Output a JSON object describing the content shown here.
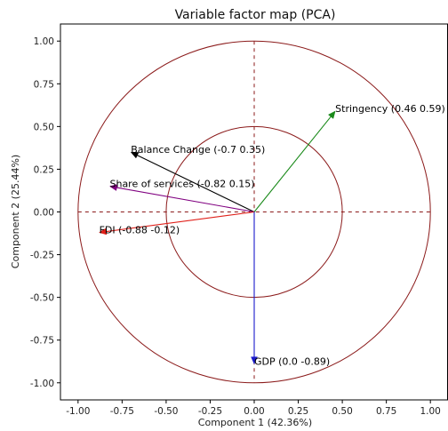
{
  "chart_data": {
    "type": "scatter",
    "title": "Variable factor map (PCA)",
    "xlabel": "Component 1 (42.36%)",
    "ylabel": "Component 2 (25.44%)",
    "xlim": [
      -1.1,
      1.1
    ],
    "ylim": [
      -1.1,
      1.1
    ],
    "xticks": [
      "-1.00",
      "-0.75",
      "-0.50",
      "-0.25",
      "0.00",
      "0.25",
      "0.50",
      "0.75",
      "1.00"
    ],
    "yticks": [
      "1.00",
      "0.75",
      "0.50",
      "0.25",
      "0.00",
      "-0.25",
      "-0.50",
      "-0.75",
      "-1.00"
    ],
    "xtick_values": [
      -1,
      -0.75,
      -0.5,
      -0.25,
      0,
      0.25,
      0.5,
      0.75,
      1
    ],
    "ytick_values": [
      1,
      0.75,
      0.5,
      0.25,
      0,
      -0.25,
      -0.5,
      -0.75,
      -1
    ],
    "circles": [
      {
        "radius": 1.0,
        "color": "#8b1a1a"
      },
      {
        "radius": 0.5,
        "color": "#8b1a1a"
      }
    ],
    "reference_lines_color": "#8b1a1a",
    "grid": false,
    "vectors": [
      {
        "label": "Stringency (0.46 0.59)",
        "x": 0.46,
        "y": 0.59,
        "color": "#1a8a1a"
      },
      {
        "label": "Balance Change (-0.7 0.35)",
        "x": -0.7,
        "y": 0.35,
        "color": "#000000"
      },
      {
        "label": "Share of services (-0.82 0.15)",
        "x": -0.82,
        "y": 0.15,
        "color": "#800080"
      },
      {
        "label": "FDI (-0.88 -0.12)",
        "x": -0.88,
        "y": -0.12,
        "color": "#e0201a"
      },
      {
        "label": "GDP (0.0 -0.89)",
        "x": 0.0,
        "y": -0.89,
        "color": "#1a1acc"
      }
    ]
  }
}
